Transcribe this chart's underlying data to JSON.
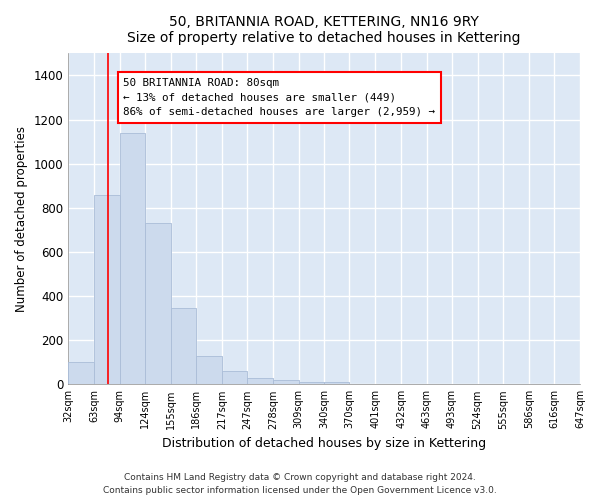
{
  "title_line1": "50, BRITANNIA ROAD, KETTERING, NN16 9RY",
  "title_line2": "Size of property relative to detached houses in Kettering",
  "xlabel": "Distribution of detached houses by size in Kettering",
  "ylabel": "Number of detached properties",
  "bar_color": "#ccdaed",
  "bar_edge_color": "#aabdd8",
  "background_color": "#dde8f5",
  "grid_color": "#ffffff",
  "annotation_text": "50 BRITANNIA ROAD: 80sqm\n← 13% of detached houses are smaller (449)\n86% of semi-detached houses are larger (2,959) →",
  "property_size": 80,
  "footnote1": "Contains HM Land Registry data © Crown copyright and database right 2024.",
  "footnote2": "Contains public sector information licensed under the Open Government Licence v3.0.",
  "bin_edges": [
    32,
    63,
    94,
    124,
    155,
    186,
    217,
    247,
    278,
    309,
    340,
    370,
    401,
    432,
    463,
    493,
    524,
    555,
    586,
    616,
    647
  ],
  "bar_heights": [
    100,
    860,
    1140,
    730,
    345,
    130,
    60,
    30,
    20,
    10,
    10,
    0,
    0,
    0,
    0,
    0,
    0,
    0,
    0,
    0
  ],
  "ylim_max": 1500,
  "yticks": [
    0,
    200,
    400,
    600,
    800,
    1000,
    1200,
    1400
  ]
}
